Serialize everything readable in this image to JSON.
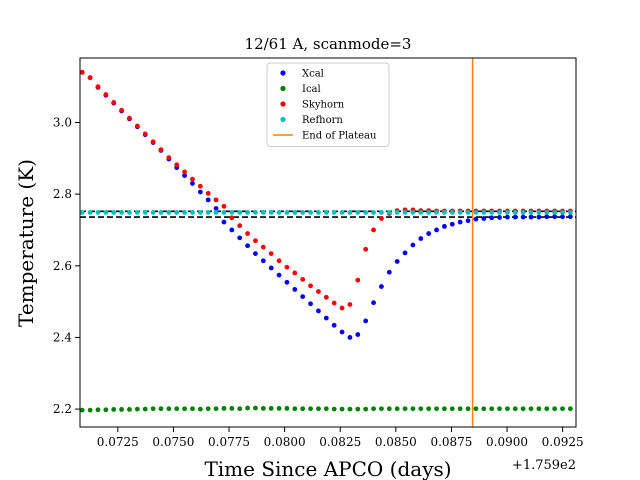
{
  "chart_data": {
    "type": "scatter",
    "title": "12/61 A, scanmode=3",
    "xlabel": "Time Since APCO (days)",
    "ylabel": "Temperature (K)",
    "x_offset_label": "+1.759e2",
    "xlim": [
      0.0708,
      0.0931
    ],
    "ylim": [
      2.15,
      3.18
    ],
    "x_ticks": [
      0.0725,
      0.075,
      0.0775,
      0.08,
      0.0825,
      0.085,
      0.0875,
      0.09,
      0.0925
    ],
    "x_tick_labels": [
      "0.0725",
      "0.0750",
      "0.0775",
      "0.0800",
      "0.0825",
      "0.0850",
      "0.0875",
      "0.0900",
      "0.0925"
    ],
    "y_ticks": [
      2.2,
      2.4,
      2.6,
      2.8,
      3.0
    ],
    "y_tick_labels": [
      "2.2",
      "2.4",
      "2.6",
      "2.8",
      "3.0"
    ],
    "grid": false,
    "legend_position": "top-center",
    "legend": [
      {
        "label": "Xcal",
        "kind": "marker",
        "color": "#0000ff"
      },
      {
        "label": "Ical",
        "kind": "marker",
        "color": "#008000"
      },
      {
        "label": "Skyhorn",
        "kind": "marker",
        "color": "#ff0000"
      },
      {
        "label": "Refhorn",
        "kind": "marker",
        "color": "#00bfbf"
      },
      {
        "label": "End of Plateau",
        "kind": "line",
        "color": "#ff7f0e"
      }
    ],
    "x_start": 0.0709,
    "x_step": 0.000354,
    "n_points": 63,
    "series": [
      {
        "name": "Xcal",
        "color": "#0000ff",
        "x_start": 0.0709,
        "x_step": 0.000354,
        "values": [
          3.14,
          3.125,
          3.098,
          3.076,
          3.054,
          3.032,
          3.01,
          2.988,
          2.966,
          2.944,
          2.922,
          2.898,
          2.874,
          2.852,
          2.83,
          2.806,
          2.784,
          2.76,
          2.722,
          2.7,
          2.678,
          2.656,
          2.634,
          2.614,
          2.594,
          2.574,
          2.554,
          2.534,
          2.514,
          2.494,
          2.474,
          2.454,
          2.434,
          2.415,
          2.4,
          2.408,
          2.446,
          2.497,
          2.542,
          2.582,
          2.612,
          2.636,
          2.658,
          2.676,
          2.69,
          2.7,
          2.71,
          2.716,
          2.722,
          2.726,
          2.73,
          2.732,
          2.734,
          2.735,
          2.736,
          2.736,
          2.736,
          2.736,
          2.736,
          2.737,
          2.737,
          2.737,
          2.737
        ]
      },
      {
        "name": "Ical",
        "color": "#008000",
        "x_start": 0.0709,
        "x_step": 0.000354,
        "values": [
          2.197,
          2.197,
          2.198,
          2.198,
          2.199,
          2.199,
          2.199,
          2.2,
          2.2,
          2.201,
          2.201,
          2.201,
          2.201,
          2.201,
          2.201,
          2.2,
          2.201,
          2.201,
          2.202,
          2.202,
          2.201,
          2.203,
          2.203,
          2.202,
          2.202,
          2.202,
          2.202,
          2.201,
          2.201,
          2.201,
          2.201,
          2.201,
          2.2,
          2.2,
          2.2,
          2.2,
          2.2,
          2.201,
          2.201,
          2.201,
          2.201,
          2.201,
          2.201,
          2.201,
          2.201,
          2.201,
          2.201,
          2.201,
          2.201,
          2.201,
          2.201,
          2.201,
          2.201,
          2.201,
          2.201,
          2.201,
          2.201,
          2.201,
          2.201,
          2.201,
          2.201,
          2.201,
          2.201
        ]
      },
      {
        "name": "Skyhorn",
        "color": "#ff0000",
        "x_start": 0.0709,
        "x_step": 0.000354,
        "values": [
          3.14,
          3.125,
          3.1,
          3.078,
          3.056,
          3.034,
          3.012,
          2.99,
          2.968,
          2.946,
          2.924,
          2.902,
          2.882,
          2.862,
          2.842,
          2.822,
          2.802,
          2.784,
          2.766,
          2.734,
          2.712,
          2.69,
          2.67,
          2.652,
          2.634,
          2.614,
          2.596,
          2.58,
          2.562,
          2.544,
          2.528,
          2.512,
          2.496,
          2.482,
          2.492,
          2.56,
          2.646,
          2.7,
          2.732,
          2.746,
          2.754,
          2.756,
          2.756,
          2.754,
          2.754,
          2.753,
          2.753,
          2.753,
          2.753,
          2.753,
          2.753,
          2.753,
          2.753,
          2.753,
          2.753,
          2.753,
          2.753,
          2.753,
          2.753,
          2.753,
          2.753,
          2.753,
          2.753
        ]
      },
      {
        "name": "Refhorn",
        "color": "#00bfbf",
        "x_start": 0.0709,
        "x_step": 0.000354,
        "values": [
          2.749,
          2.749,
          2.749,
          2.749,
          2.749,
          2.749,
          2.749,
          2.749,
          2.749,
          2.749,
          2.749,
          2.749,
          2.749,
          2.749,
          2.749,
          2.749,
          2.749,
          2.749,
          2.749,
          2.749,
          2.749,
          2.749,
          2.749,
          2.749,
          2.749,
          2.749,
          2.749,
          2.749,
          2.749,
          2.749,
          2.749,
          2.749,
          2.749,
          2.749,
          2.749,
          2.749,
          2.749,
          2.749,
          2.749,
          2.749,
          2.749,
          2.749,
          2.749,
          2.749,
          2.749,
          2.749,
          2.749,
          2.749,
          2.749,
          2.749,
          2.749,
          2.749,
          2.749,
          2.749,
          2.749,
          2.749,
          2.749,
          2.749,
          2.749,
          2.749,
          2.749,
          2.749,
          2.749
        ]
      }
    ],
    "hlines": [
      {
        "y": 2.752,
        "style": "dashed",
        "color": "#000000"
      },
      {
        "y": 2.736,
        "style": "dashed",
        "color": "#000000"
      }
    ],
    "vlines": [
      {
        "x": 0.08845,
        "label": "End of Plateau",
        "color": "#ff7f0e"
      }
    ]
  }
}
